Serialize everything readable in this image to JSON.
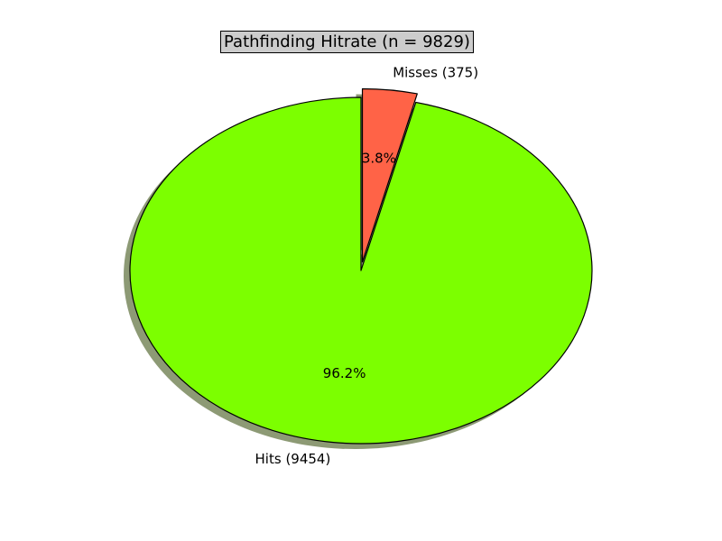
{
  "chart_data": {
    "type": "pie",
    "title": "Pathfinding Hitrate (n = 9829)",
    "slices": [
      {
        "label": "Hits (9454)",
        "value": 9454,
        "percent_label": "96.2%",
        "color": "#7cff00"
      },
      {
        "label": "Misses (375)",
        "value": 375,
        "percent_label": "3.8%",
        "color": "#ff6347",
        "exploded": true
      }
    ],
    "shadow": true,
    "shadow_color": "#8d9a75",
    "edge_color": "#000000"
  }
}
